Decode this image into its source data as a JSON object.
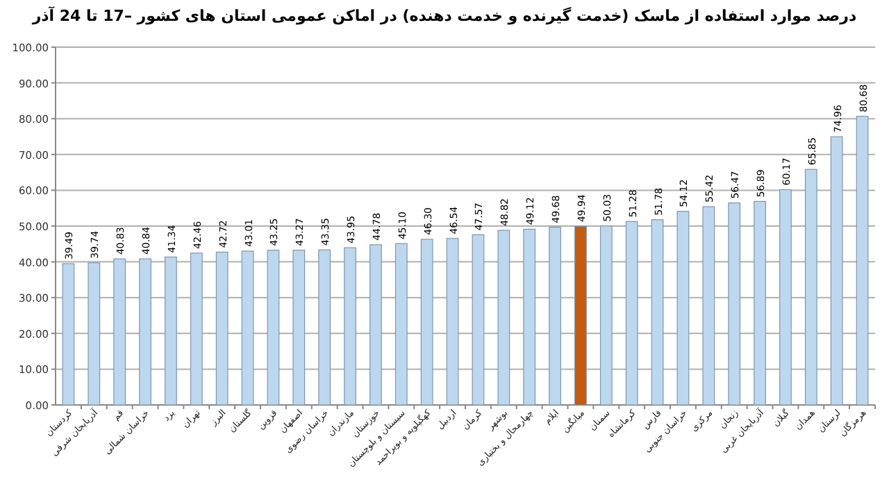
{
  "chart_data": {
    "type": "bar",
    "title": "درصد موارد استفاده از ماسک (خدمت گیرنده و خدمت دهنده) در اماکن عمومی استان های کشور –17 تا 24 آذر",
    "categories": [
      "کردستان",
      "آذربایجان شرقی",
      "قم",
      "خراسان شمالی",
      "یزد",
      "تهران",
      "البرز",
      "گلستان",
      "قزوین",
      "اصفهان",
      "خراسان رضوی",
      "مازندران",
      "خوزستان",
      "سیستان و بلوچستان",
      "کهگیلویه و بویراحمد",
      "اردبیل",
      "کرمان",
      "بوشهر",
      "چهارمحال و بختیاری",
      "ایلام",
      "میانگین",
      "سمنان",
      "کرمانشاه",
      "فارس",
      "خراسان جنوبی",
      "مرکزی",
      "زنجان",
      "آذربایجان غربی",
      "گیلان",
      "همدان",
      "لرستان",
      "هرمزگان"
    ],
    "values": [
      39.49,
      39.74,
      40.83,
      40.84,
      41.34,
      42.46,
      42.72,
      43.01,
      43.25,
      43.27,
      43.35,
      43.95,
      44.78,
      45.1,
      46.3,
      46.54,
      47.57,
      48.82,
      49.12,
      49.68,
      49.94,
      50.03,
      51.28,
      51.78,
      54.12,
      55.42,
      56.47,
      56.89,
      60.17,
      65.85,
      74.96,
      80.68
    ],
    "colors": [
      "#bdd7ee",
      "#bdd7ee",
      "#bdd7ee",
      "#bdd7ee",
      "#bdd7ee",
      "#bdd7ee",
      "#bdd7ee",
      "#bdd7ee",
      "#bdd7ee",
      "#bdd7ee",
      "#bdd7ee",
      "#bdd7ee",
      "#bdd7ee",
      "#bdd7ee",
      "#bdd7ee",
      "#bdd7ee",
      "#bdd7ee",
      "#bdd7ee",
      "#bdd7ee",
      "#bdd7ee",
      "#c55a11",
      "#bdd7ee",
      "#bdd7ee",
      "#bdd7ee",
      "#bdd7ee",
      "#bdd7ee",
      "#bdd7ee",
      "#bdd7ee",
      "#bdd7ee",
      "#bdd7ee",
      "#bdd7ee",
      "#bdd7ee"
    ],
    "ylim": [
      0,
      100
    ],
    "yticks": [
      {
        "value": 0,
        "label": "0.00"
      },
      {
        "value": 10,
        "label": "10.00"
      },
      {
        "value": 20,
        "label": "20.00"
      },
      {
        "value": 30,
        "label": "30.00"
      },
      {
        "value": 40,
        "label": "40.00"
      },
      {
        "value": 50,
        "label": "50.00"
      },
      {
        "value": 60,
        "label": "60.00"
      },
      {
        "value": 70,
        "label": "70.00"
      },
      {
        "value": 80,
        "label": "80.00"
      },
      {
        "value": 90,
        "label": "90.00"
      },
      {
        "value": 100,
        "label": "100.00"
      }
    ],
    "value_labels": [
      "39.49",
      "39.74",
      "40.83",
      "40.84",
      "41.34",
      "42.46",
      "42.72",
      "43.01",
      "43.25",
      "43.27",
      "43.35",
      "43.95",
      "44.78",
      "45.10",
      "46.30",
      "46.54",
      "47.57",
      "48.82",
      "49.12",
      "49.68",
      "49.94",
      "50.03",
      "51.28",
      "51.78",
      "54.12",
      "55.42",
      "56.47",
      "56.89",
      "60.17",
      "65.85",
      "74.96",
      "80.68"
    ],
    "grid": "y"
  }
}
